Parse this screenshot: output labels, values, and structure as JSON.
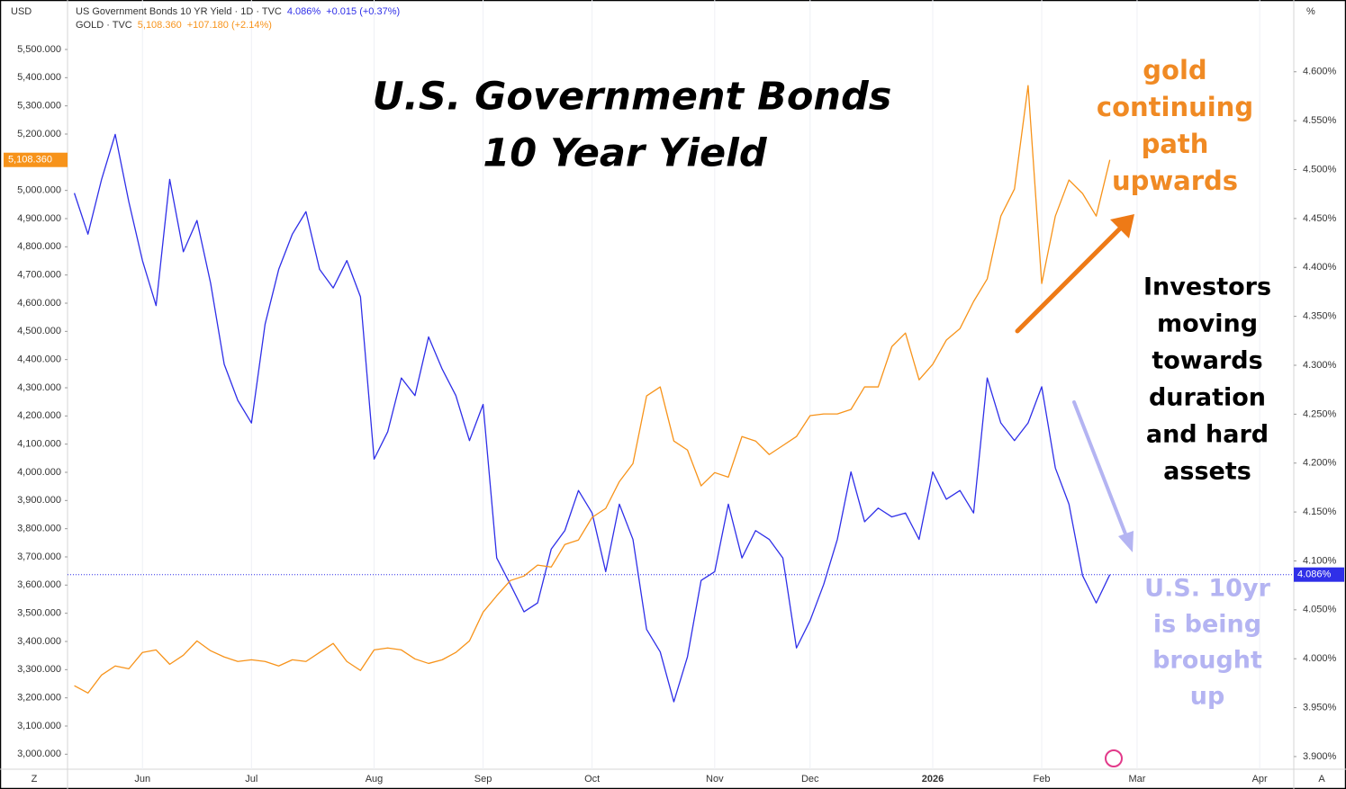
{
  "chart_data": {
    "type": "line",
    "title_lines": [
      "U.S. Government Bonds",
      "10 Year Yield"
    ],
    "left_axis_unit": "USD",
    "right_axis_unit": "%",
    "corner_left": "Z",
    "corner_right": "A",
    "annotations": [
      {
        "lines": [
          "gold",
          "continuing",
          "path",
          "upwards"
        ],
        "color": "#f08a24"
      },
      {
        "lines": [
          "Investors",
          "moving",
          "towards",
          "duration",
          "and hard",
          "assets"
        ],
        "color": "#000000"
      },
      {
        "lines": [
          "U.S. 10yr",
          "is being",
          "brought",
          "up"
        ],
        "color": "#b4b4f2"
      }
    ],
    "categories": [
      null,
      null,
      null,
      null,
      null,
      "Jun",
      null,
      null,
      null,
      null,
      null,
      null,
      null,
      "Jul",
      null,
      null,
      null,
      null,
      null,
      null,
      null,
      null,
      "Aug",
      null,
      null,
      null,
      null,
      null,
      null,
      null,
      "Sep",
      null,
      null,
      null,
      null,
      null,
      null,
      null,
      "Oct",
      null,
      null,
      null,
      null,
      null,
      null,
      null,
      null,
      "Nov",
      null,
      null,
      null,
      null,
      null,
      null,
      "Dec",
      null,
      null,
      null,
      null,
      null,
      null,
      null,
      null,
      "2026",
      null,
      null,
      null,
      null,
      null,
      null,
      null,
      "Feb",
      null,
      null,
      null,
      null,
      null,
      null,
      "Mar",
      null,
      null,
      null,
      null,
      null,
      null,
      null,
      null,
      "Apr",
      null,
      null
    ],
    "grid": "x",
    "ylim": [
      2950,
      5650
    ],
    "yticks": [
      {
        "value": 3000,
        "label": "3,000.000"
      },
      {
        "value": 3100,
        "label": "3,100.000"
      },
      {
        "value": 3200,
        "label": "3,200.000"
      },
      {
        "value": 3300,
        "label": "3,300.000"
      },
      {
        "value": 3400,
        "label": "3,400.000"
      },
      {
        "value": 3500,
        "label": "3,500.000"
      },
      {
        "value": 3600,
        "label": "3,600.000"
      },
      {
        "value": 3700,
        "label": "3,700.000"
      },
      {
        "value": 3800,
        "label": "3,800.000"
      },
      {
        "value": 3900,
        "label": "3,900.000"
      },
      {
        "value": 4000,
        "label": "4,000.000"
      },
      {
        "value": 4100,
        "label": "4,100.000"
      },
      {
        "value": 4200,
        "label": "4,200.000"
      },
      {
        "value": 4300,
        "label": "4,300.000"
      },
      {
        "value": 4400,
        "label": "4,400.000"
      },
      {
        "value": 4500,
        "label": "4,500.000"
      },
      {
        "value": 4600,
        "label": "4,600.000"
      },
      {
        "value": 4700,
        "label": "4,700.000"
      },
      {
        "value": 4800,
        "label": "4,800.000"
      },
      {
        "value": 4900,
        "label": "4,900.000"
      },
      {
        "value": 5000,
        "label": "5,000.000"
      },
      {
        "value": 5100,
        "label": "5,100.000"
      },
      {
        "value": 5200,
        "label": "5,200.000"
      },
      {
        "value": 5300,
        "label": "5,300.000"
      },
      {
        "value": 5400,
        "label": "5,400.000"
      },
      {
        "value": 5500,
        "label": "5,500.000"
      }
    ],
    "y2lim": [
      3.888,
      4.666
    ],
    "y2ticks": [
      {
        "value": 3.9,
        "label": "3.900%"
      },
      {
        "value": 3.95,
        "label": "3.950%"
      },
      {
        "value": 4.0,
        "label": "4.000%"
      },
      {
        "value": 4.05,
        "label": "4.050%"
      },
      {
        "value": 4.1,
        "label": "4.100%"
      },
      {
        "value": 4.15,
        "label": "4.150%"
      },
      {
        "value": 4.2,
        "label": "4.200%"
      },
      {
        "value": 4.25,
        "label": "4.250%"
      },
      {
        "value": 4.3,
        "label": "4.300%"
      },
      {
        "value": 4.35,
        "label": "4.350%"
      },
      {
        "value": 4.4,
        "label": "4.400%"
      },
      {
        "value": 4.45,
        "label": "4.450%"
      },
      {
        "value": 4.5,
        "label": "4.500%"
      },
      {
        "value": 4.55,
        "label": "4.550%"
      },
      {
        "value": 4.6,
        "label": "4.600%"
      }
    ],
    "series": [
      {
        "name": "US Government Bonds 10 YR Yield · 1D · TVC",
        "axis": "y2",
        "color": "#2f2fe8",
        "last_label": "4.086%",
        "change_label": "+0.015 (+0.37%)",
        "values": [
          4.476,
          4.434,
          4.49,
          4.536,
          4.467,
          4.407,
          4.361,
          4.49,
          4.416,
          4.448,
          4.384,
          4.301,
          4.264,
          4.241,
          4.342,
          4.398,
          4.434,
          4.457,
          4.398,
          4.379,
          4.407,
          4.37,
          4.204,
          4.232,
          4.287,
          4.269,
          4.329,
          4.296,
          4.269,
          4.223,
          4.26,
          4.103,
          4.076,
          4.048,
          4.057,
          4.112,
          4.131,
          4.172,
          4.149,
          4.089,
          4.158,
          4.122,
          4.03,
          4.007,
          3.956,
          4.002,
          4.08,
          4.089,
          4.158,
          4.103,
          4.131,
          4.122,
          4.103,
          4.011,
          4.039,
          4.076,
          4.122,
          4.191,
          4.14,
          4.154,
          4.145,
          4.149,
          4.122,
          4.191,
          4.163,
          4.172,
          4.149,
          4.287,
          4.241,
          4.223,
          4.241,
          4.278,
          4.195,
          4.158,
          4.085,
          4.057,
          4.086,
          null,
          null,
          null,
          null,
          null,
          null,
          null,
          null,
          null,
          null,
          null,
          null,
          null
        ]
      },
      {
        "name": "GOLD · TVC",
        "color": "#f7931a",
        "last_label": "5,108.360",
        "change_label": "+107.180 (+2.14%)",
        "values": [
          3243,
          3217,
          3281,
          3313,
          3303,
          3361,
          3370,
          3319,
          3351,
          3402,
          3367,
          3345,
          3329,
          3335,
          3329,
          3313,
          3335,
          3329,
          3361,
          3393,
          3329,
          3297,
          3370,
          3377,
          3370,
          3338,
          3322,
          3335,
          3361,
          3402,
          3504,
          3562,
          3616,
          3632,
          3671,
          3664,
          3744,
          3760,
          3840,
          3872,
          3967,
          4031,
          4271,
          4303,
          4111,
          4079,
          3952,
          3999,
          3983,
          4127,
          4111,
          4063,
          4095,
          4127,
          4201,
          4207,
          4207,
          4223,
          4303,
          4303,
          4446,
          4494,
          4328,
          4383,
          4469,
          4510,
          4606,
          4686,
          4909,
          5005,
          5372,
          4670,
          4909,
          5037,
          4989,
          4909,
          5108.36,
          null,
          null,
          null,
          null,
          null,
          null,
          null,
          null,
          null,
          null,
          null,
          null,
          null
        ]
      }
    ]
  }
}
